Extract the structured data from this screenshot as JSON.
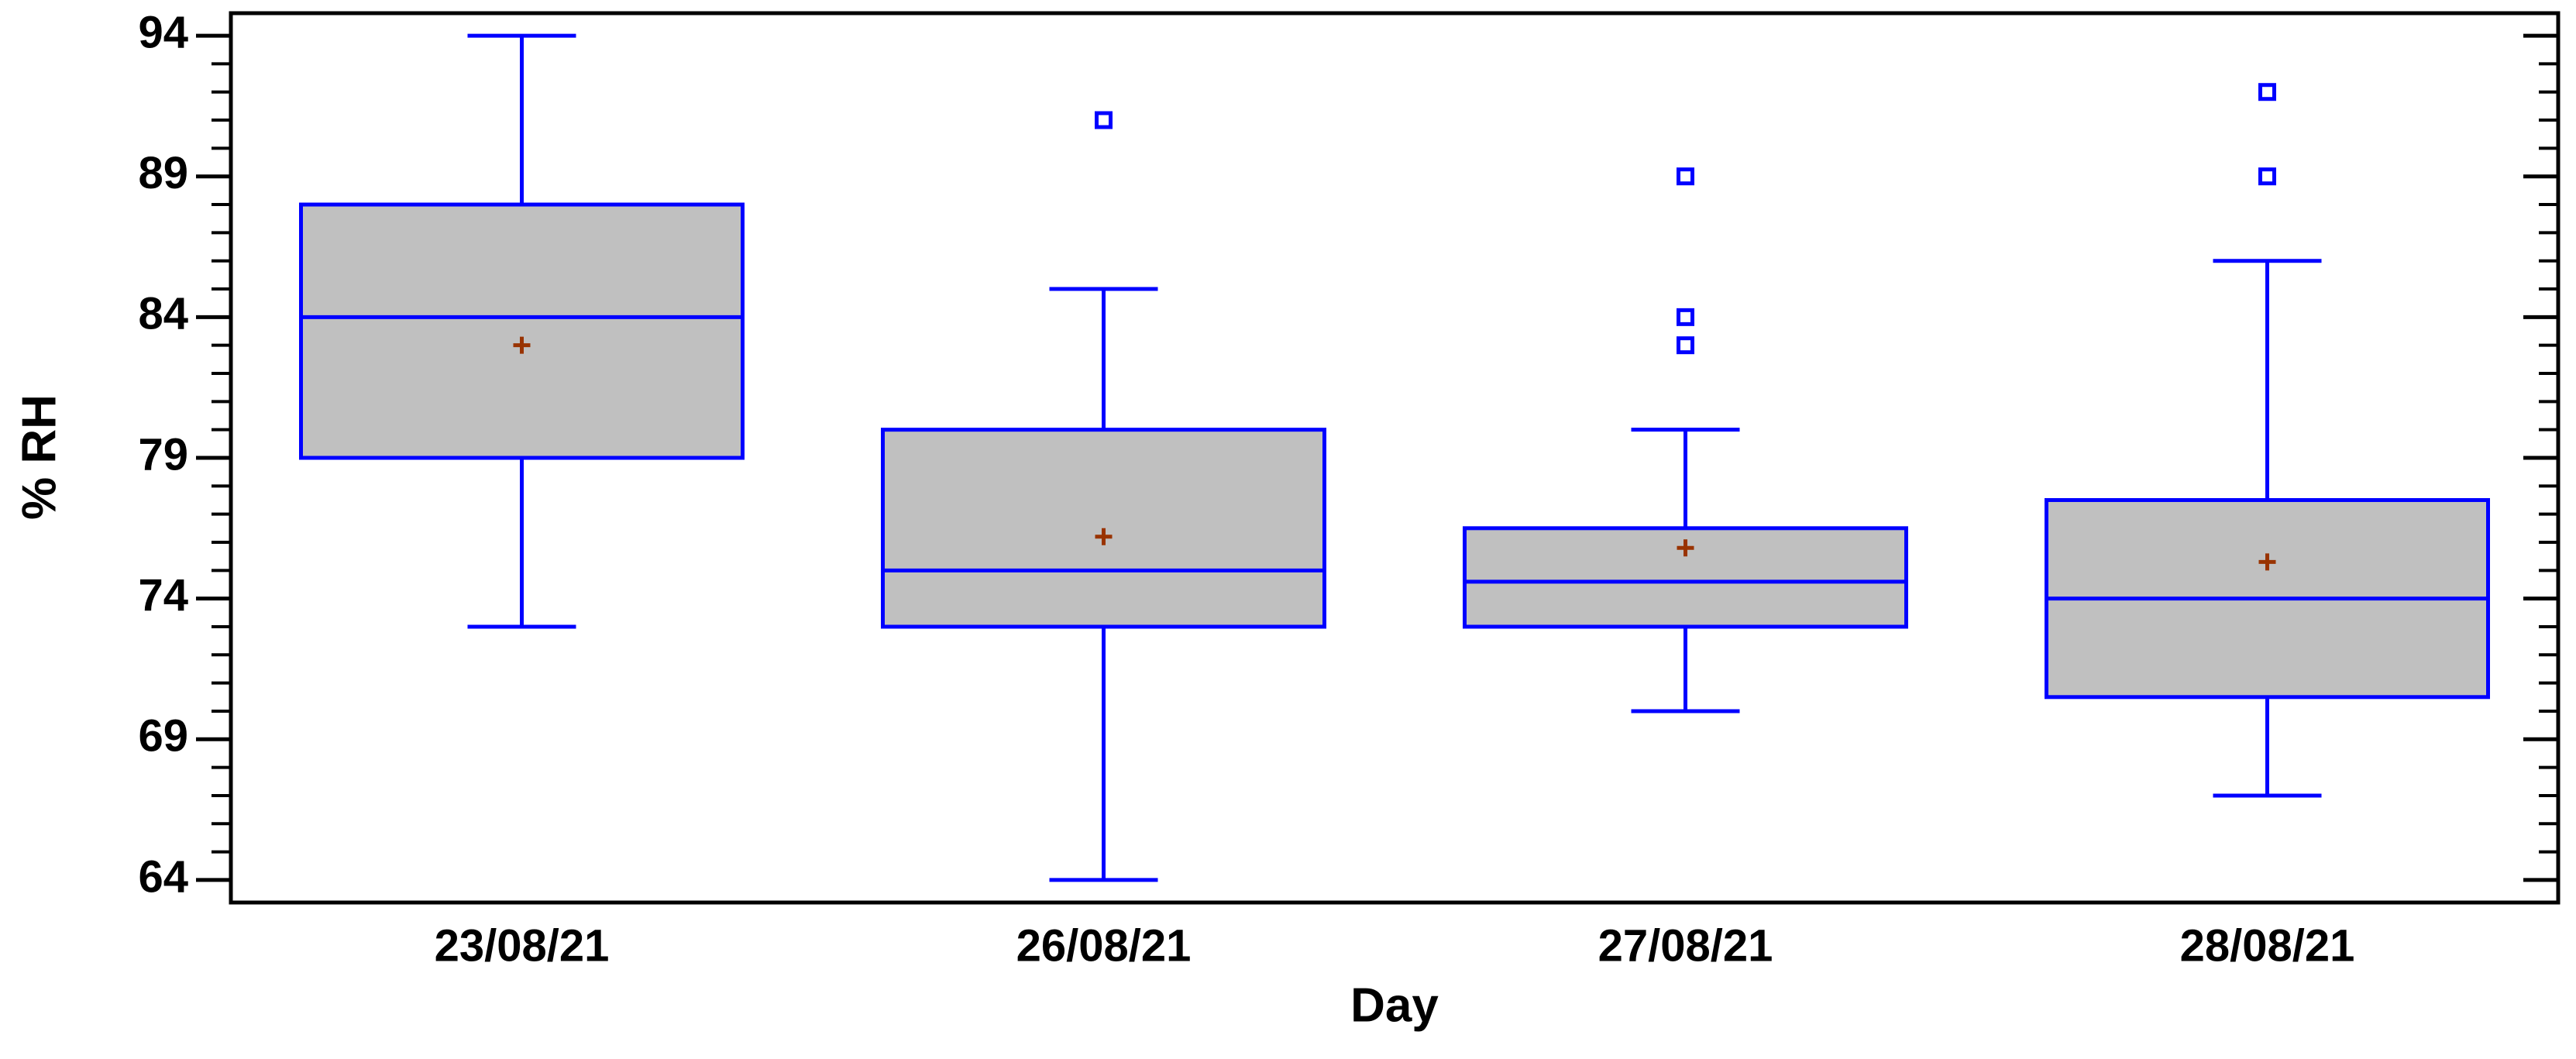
{
  "chart_data": {
    "type": "box",
    "x_label": "Day",
    "y_label": "% RH",
    "categories": [
      "23/08/21",
      "26/08/21",
      "27/08/21",
      "28/08/21"
    ],
    "boxes": [
      {
        "min": 73,
        "q1": 79,
        "median": 84,
        "q3": 88,
        "max": 94,
        "mean": 83,
        "outliers": []
      },
      {
        "min": 64,
        "q1": 73,
        "median": 75,
        "q3": 80,
        "max": 85,
        "mean": 76.2,
        "outliers": [
          91
        ]
      },
      {
        "min": 70,
        "q1": 73,
        "median": 74.6,
        "q3": 76.5,
        "max": 80,
        "mean": 75.8,
        "outliers": [
          89,
          84,
          83
        ]
      },
      {
        "min": 67,
        "q1": 70.5,
        "median": 74,
        "q3": 77.5,
        "max": 86,
        "mean": 75.3,
        "outliers": [
          92,
          89
        ]
      }
    ],
    "box_color": "#c0c0c0",
    "line_color": "#0000ff",
    "mean_color": "#993300",
    "ylim": [
      63.2,
      94.8
    ],
    "yticks": [
      64,
      69,
      74,
      79,
      84,
      89,
      94
    ],
    "yminorticks": [
      65,
      66,
      67,
      68,
      70,
      71,
      72,
      73,
      75,
      76,
      77,
      78,
      80,
      81,
      82,
      83,
      85,
      86,
      87,
      88,
      90,
      91,
      92,
      93
    ]
  }
}
